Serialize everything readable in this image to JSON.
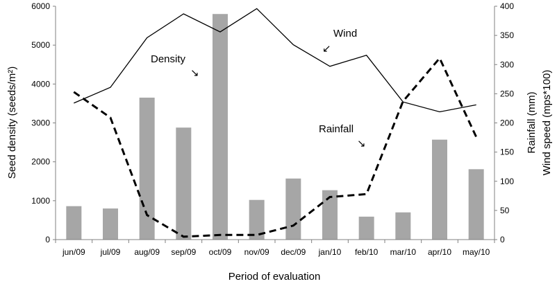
{
  "chart_data": {
    "type": "bar",
    "categories": [
      "jun/09",
      "jul/09",
      "aug/09",
      "sep/09",
      "oct/09",
      "nov/09",
      "dec/09",
      "jan/10",
      "feb/10",
      "mar/10",
      "apr/10",
      "may/10"
    ],
    "xlabel": "Period of evaluation",
    "ylabel_left": "Seed density (seeds/m²)",
    "ylabel_right_1": "Rainfall (mm)",
    "ylabel_right_2": "Wind speed (mps*100)",
    "ylim_left": [
      0,
      6000
    ],
    "ylim_right": [
      0,
      400
    ],
    "left_ticks": [
      0,
      1000,
      2000,
      3000,
      4000,
      5000,
      6000
    ],
    "right_ticks": [
      0,
      50,
      100,
      150,
      200,
      250,
      300,
      350,
      400
    ],
    "grid": false,
    "bar_color": "#a6a6a6",
    "series": [
      {
        "axis": "left",
        "style": "bar",
        "values": [
          860,
          800,
          3650,
          2880,
          5800,
          1020,
          1570,
          1270,
          590,
          700,
          2570,
          1810
        ]
      },
      {
        "axis": "right",
        "style": "dashed",
        "values": [
          253,
          209,
          42,
          5,
          8,
          8,
          24,
          73,
          78,
          237,
          311,
          176
        ]
      },
      {
        "axis": "right",
        "style": "solid",
        "values": [
          234,
          261,
          346,
          387,
          356,
          396,
          334,
          297,
          316,
          236,
          219,
          231
        ]
      }
    ],
    "annotations": [
      {
        "text": "Wind",
        "arrow": "↙"
      },
      {
        "text": "Density",
        "arrow": "↘"
      },
      {
        "text": "Rainfall",
        "arrow": "↘"
      }
    ]
  }
}
